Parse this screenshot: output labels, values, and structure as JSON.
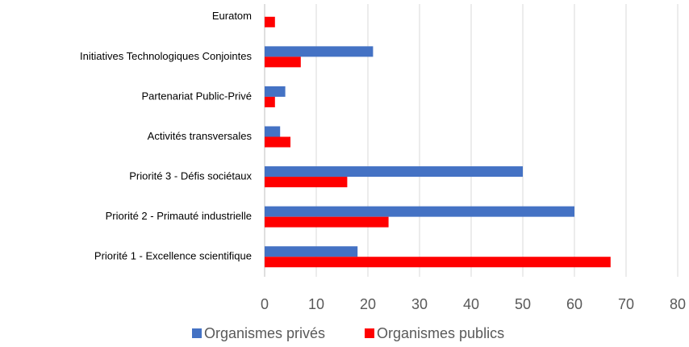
{
  "chart_data": {
    "type": "hbar",
    "categories": [
      "Euratom",
      "Initiatives Technologiques Conjointes",
      "Partenariat Public-Privé",
      "Activités transversales",
      "Priorité 3 - Défis sociétaux",
      "Priorité 2 - Primauté industrielle",
      "Priorité 1 - Excellence scientifique"
    ],
    "series": [
      {
        "name": "Organismes privés",
        "color": "#4472c4",
        "values": [
          0,
          21,
          4,
          3,
          50,
          60,
          18
        ]
      },
      {
        "name": "Organismes publics",
        "color": "#ff0000",
        "values": [
          2,
          7,
          2,
          5,
          16,
          24,
          67
        ]
      }
    ],
    "xlim": [
      0,
      80
    ],
    "xticks": [
      0,
      10,
      20,
      30,
      40,
      50,
      60,
      70,
      80
    ],
    "grid": true,
    "legend": "bottom"
  }
}
